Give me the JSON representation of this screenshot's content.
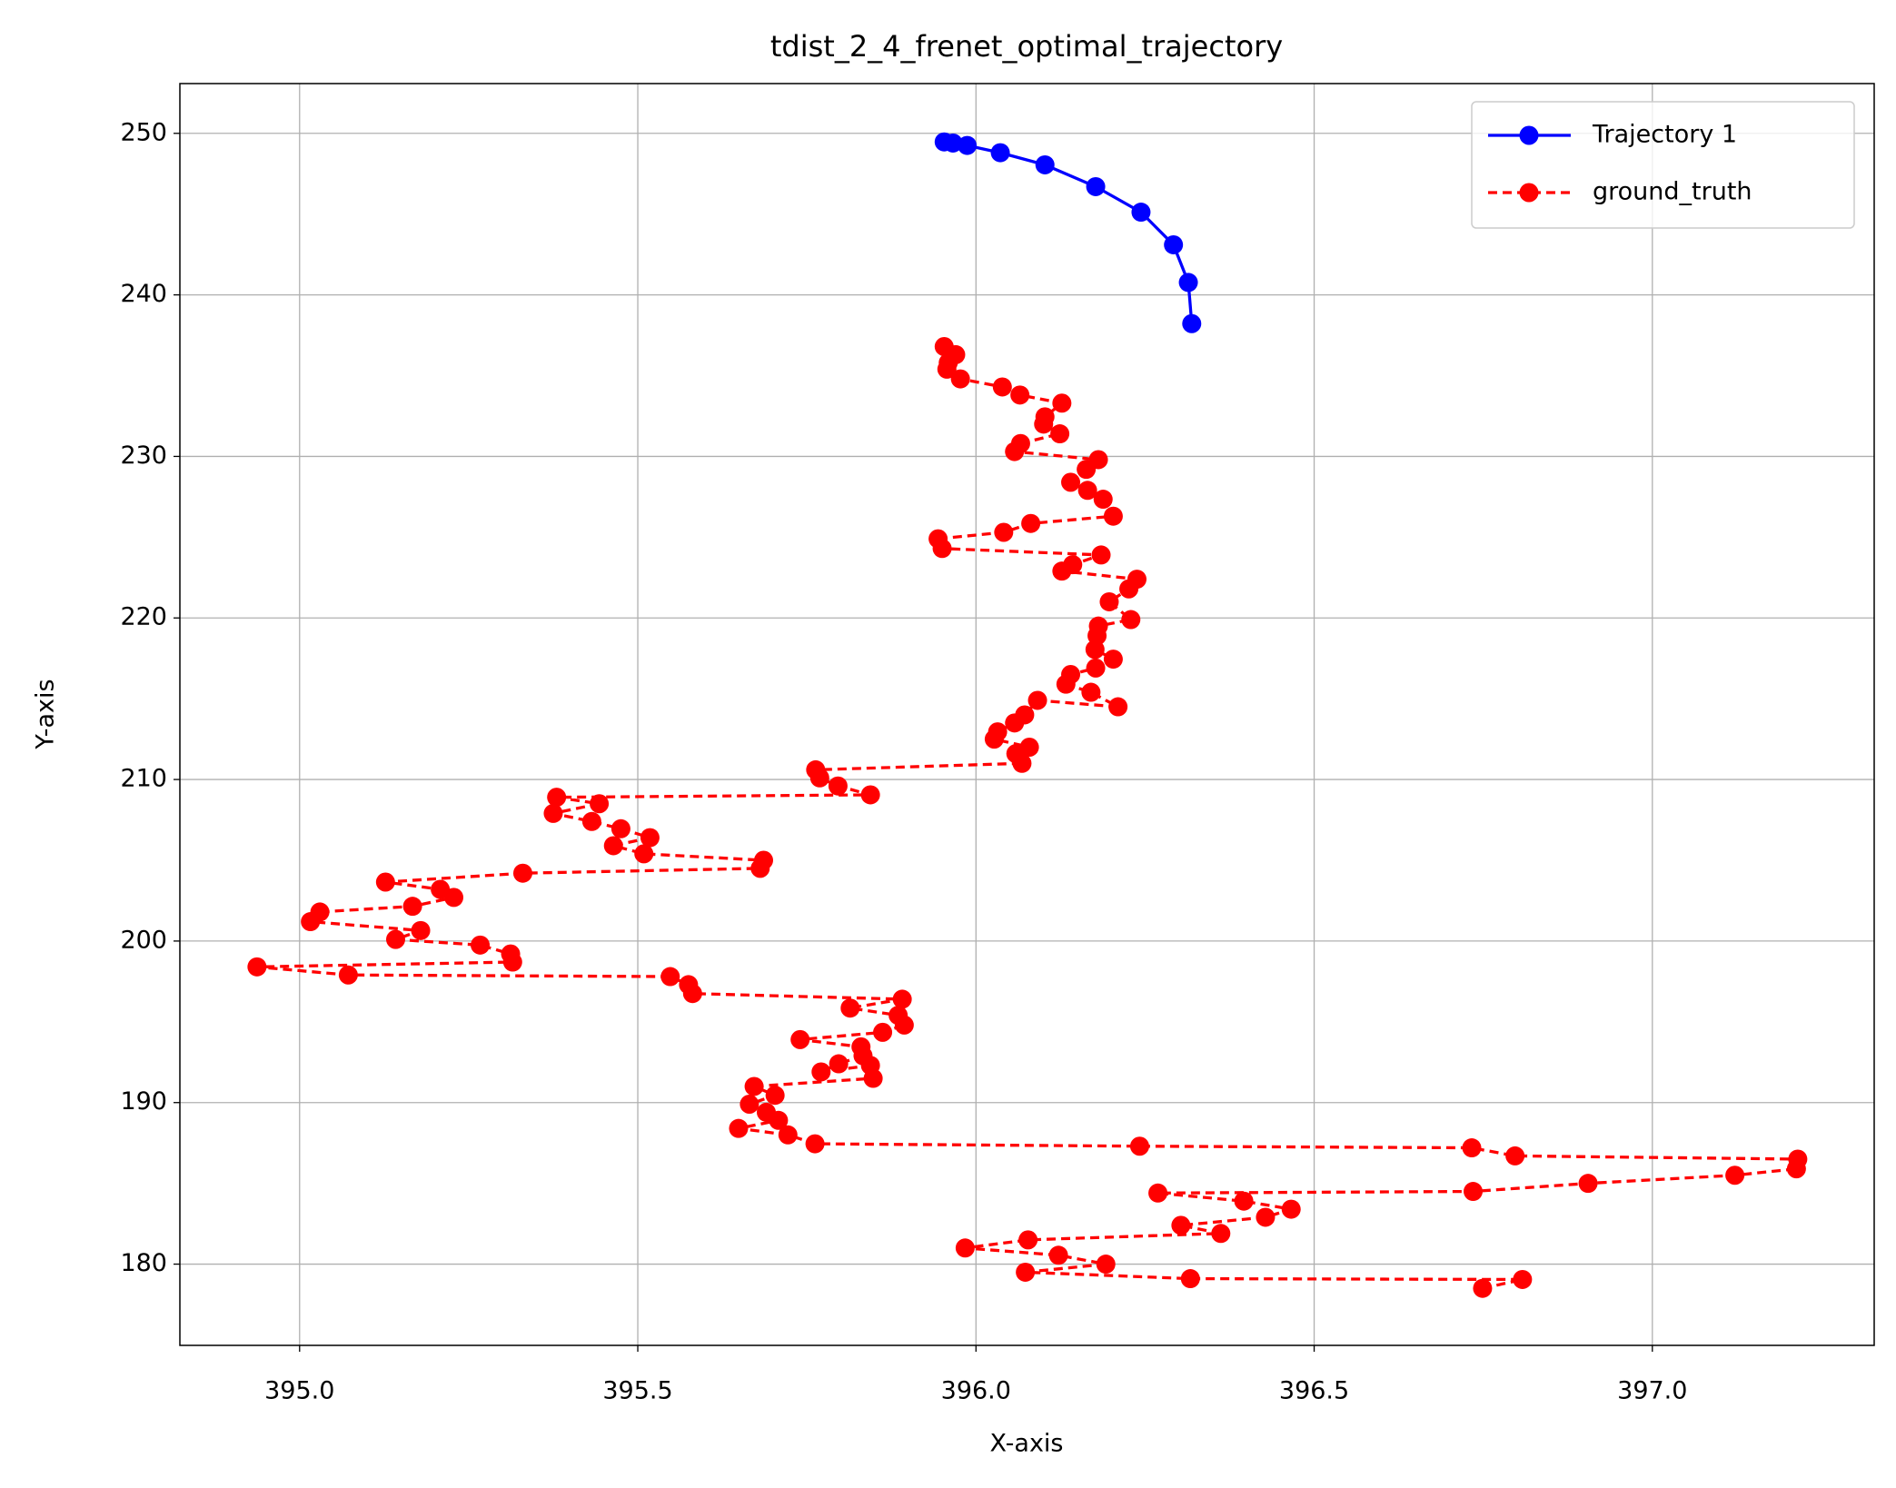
{
  "chart_data": {
    "type": "line",
    "title": "tdist_2_4_frenet_optimal_trajectory",
    "x_label": "X-axis",
    "y_label": "Y-axis",
    "xlim": [
      394.823,
      397.328
    ],
    "ylim": [
      174.97,
      253.08
    ],
    "xticks": [
      {
        "value": 395,
        "label": "395.0"
      },
      {
        "value": 395.5,
        "label": "395.5"
      },
      {
        "value": 396,
        "label": "396.0"
      },
      {
        "value": 396.5,
        "label": "396.5"
      },
      {
        "value": 397,
        "label": "397.0"
      }
    ],
    "yticks": [
      180,
      190,
      200,
      210,
      220,
      230,
      240,
      250
    ],
    "grid": true,
    "legend_loc": "upper right",
    "series": [
      {
        "name": "Trajectory 1",
        "color": "#0000ff",
        "linestyle": "solid",
        "x": [
          395.953,
          395.966,
          395.987,
          396.036,
          396.102,
          396.177,
          396.244,
          396.292,
          396.314,
          396.319
        ],
        "values": [
          249.47,
          249.4,
          249.25,
          248.8,
          248.05,
          246.7,
          245.12,
          243.1,
          240.77,
          238.22
        ]
      },
      {
        "name": "ground_truth",
        "color": "#ff0000",
        "linestyle": "dashed",
        "x": [
          395.953,
          395.97,
          395.959,
          395.957,
          395.977,
          396.039,
          396.065,
          396.127,
          396.102,
          396.1,
          396.124,
          396.066,
          396.057,
          396.181,
          396.163,
          396.14,
          396.165,
          396.188,
          396.203,
          396.081,
          396.041,
          395.944,
          395.95,
          396.185,
          396.143,
          396.127,
          396.238,
          396.226,
          396.197,
          396.229,
          396.181,
          396.179,
          396.176,
          396.203,
          396.177,
          396.14,
          396.133,
          396.17,
          396.21,
          396.091,
          396.072,
          396.057,
          396.032,
          396.027,
          396.079,
          396.059,
          396.068,
          395.763,
          395.769,
          395.796,
          395.844,
          395.38,
          395.443,
          395.375,
          395.432,
          395.475,
          395.518,
          395.464,
          395.509,
          395.686,
          395.681,
          395.33,
          395.127,
          395.208,
          395.228,
          395.167,
          395.03,
          395.016,
          395.179,
          395.142,
          395.267,
          395.312,
          395.315,
          394.937,
          395.072,
          395.548,
          395.575,
          395.581,
          395.891,
          395.814,
          395.885,
          395.894,
          395.862,
          395.74,
          395.83,
          395.833,
          395.797,
          395.771,
          395.844,
          395.848,
          395.672,
          395.703,
          395.665,
          395.69,
          395.708,
          395.649,
          395.722,
          395.762,
          396.242,
          396.733,
          396.797,
          397.215,
          397.213,
          397.122,
          396.905,
          396.735,
          396.269,
          396.396,
          396.466,
          396.428,
          396.303,
          396.362,
          396.077,
          395.984,
          396.122,
          396.192,
          396.073,
          396.317,
          396.808,
          396.749
        ],
        "values": [
          236.8,
          236.3,
          235.8,
          235.4,
          234.8,
          234.3,
          233.8,
          233.3,
          232.45,
          232.0,
          231.4,
          230.8,
          230.3,
          229.8,
          229.2,
          228.4,
          227.9,
          227.35,
          226.3,
          225.85,
          225.3,
          224.9,
          224.3,
          223.9,
          223.3,
          222.9,
          222.4,
          221.8,
          221.0,
          219.9,
          219.5,
          218.9,
          218.05,
          217.45,
          216.9,
          216.5,
          215.9,
          215.4,
          214.5,
          214.9,
          214.0,
          213.5,
          212.95,
          212.5,
          212.0,
          211.6,
          211.0,
          210.6,
          210.1,
          209.6,
          209.05,
          208.9,
          208.5,
          207.9,
          207.4,
          206.95,
          206.4,
          205.9,
          205.4,
          205.0,
          204.5,
          204.2,
          203.65,
          203.2,
          202.7,
          202.15,
          201.8,
          201.2,
          200.65,
          200.1,
          199.75,
          199.2,
          198.7,
          198.4,
          197.9,
          197.8,
          197.3,
          196.75,
          196.4,
          195.85,
          195.4,
          194.8,
          194.35,
          193.9,
          193.45,
          192.9,
          192.4,
          191.9,
          192.3,
          191.5,
          191.0,
          190.45,
          189.9,
          189.4,
          188.9,
          188.4,
          188.0,
          187.45,
          187.3,
          187.2,
          186.7,
          186.5,
          185.9,
          185.5,
          185.0,
          184.5,
          184.4,
          183.9,
          183.4,
          182.9,
          182.4,
          181.9,
          181.5,
          181.0,
          180.55,
          180.0,
          179.5,
          179.1,
          179.05,
          178.5
        ]
      }
    ]
  }
}
